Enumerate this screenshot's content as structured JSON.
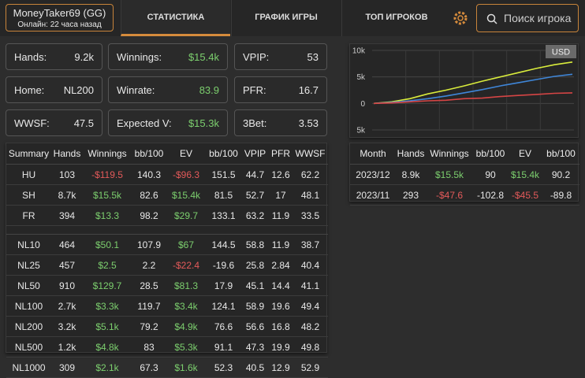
{
  "header": {
    "player": "MoneyTaker69 (GG)",
    "status": "Онлайн: 22 часа назад",
    "tabs": [
      "СТАТИСТИКА",
      "ГРАФИК ИГРЫ",
      "ТОП ИГРОКОВ"
    ],
    "active_tab": 0,
    "search_placeholder": "Поиск игрока"
  },
  "stats": [
    {
      "label": "Hands:",
      "value": "9.2k"
    },
    {
      "label": "Winnings:",
      "value": "$15.4k",
      "color": "#7ccf6e"
    },
    {
      "label": "VPIP:",
      "value": "53"
    },
    {
      "label": "Home:",
      "value": "NL200"
    },
    {
      "label": "Winrate:",
      "value": "83.9",
      "color": "#7ccf6e"
    },
    {
      "label": "PFR:",
      "value": "16.7"
    },
    {
      "label": "WWSF:",
      "value": "47.5"
    },
    {
      "label": "Expected V:",
      "value": "$15.3k",
      "color": "#7ccf6e"
    },
    {
      "label": "3Bet:",
      "value": "3.53"
    }
  ],
  "summary_table": {
    "columns": [
      "Summary",
      "Hands",
      "Winnings",
      "bb/100",
      "EV",
      "bb/100",
      "VPIP",
      "PFR",
      "WWSF"
    ],
    "groups": [
      [
        [
          "HU",
          "103",
          "-$119.5",
          "140.3",
          "-$96.3",
          "151.5",
          "44.7",
          "12.6",
          "62.2"
        ],
        [
          "SH",
          "8.7k",
          "$15.5k",
          "82.6",
          "$15.4k",
          "81.5",
          "52.7",
          "17",
          "48.1"
        ],
        [
          "FR",
          "394",
          "$13.3",
          "98.2",
          "$29.7",
          "133.1",
          "63.2",
          "11.9",
          "33.5"
        ]
      ],
      [
        [
          "NL10",
          "464",
          "$50.1",
          "107.9",
          "$67",
          "144.5",
          "58.8",
          "11.9",
          "38.7"
        ],
        [
          "NL25",
          "457",
          "$2.5",
          "2.2",
          "-$22.4",
          "-19.6",
          "25.8",
          "2.84",
          "40.4"
        ],
        [
          "NL50",
          "910",
          "$129.7",
          "28.5",
          "$81.3",
          "17.9",
          "45.1",
          "14.4",
          "41.1"
        ],
        [
          "NL100",
          "2.7k",
          "$3.3k",
          "119.7",
          "$3.4k",
          "124.1",
          "58.9",
          "19.6",
          "49.4"
        ],
        [
          "NL200",
          "3.2k",
          "$5.1k",
          "79.2",
          "$4.9k",
          "76.6",
          "56.6",
          "16.8",
          "48.2"
        ],
        [
          "NL500",
          "1.2k",
          "$4.8k",
          "83",
          "$5.3k",
          "91.1",
          "47.3",
          "19.9",
          "49.8"
        ],
        [
          "NL1000",
          "309",
          "$2.1k",
          "67.3",
          "$1.6k",
          "52.3",
          "40.5",
          "12.9",
          "52.9"
        ]
      ]
    ]
  },
  "chart": {
    "currency": "USD",
    "ylim": [
      -5000,
      10000
    ],
    "yticks": [
      {
        "value": 10000,
        "label": "10k"
      },
      {
        "value": 5000,
        "label": "5k"
      },
      0,
      {
        "value": -5000,
        "label": "5k"
      }
    ],
    "grid": true,
    "series": [
      {
        "color": "#d9ec3c",
        "values": [
          0,
          300,
          900,
          1800,
          2500,
          3300,
          4200,
          5000,
          5800,
          6600,
          7300,
          7800
        ]
      },
      {
        "color": "#3f86d8",
        "values": [
          0,
          200,
          500,
          900,
          1400,
          2000,
          2600,
          3300,
          3900,
          4500,
          5100,
          5500
        ]
      },
      {
        "color": "#d64545",
        "values": [
          0,
          100,
          300,
          500,
          600,
          900,
          1000,
          1300,
          1500,
          1700,
          1900,
          2000
        ]
      }
    ]
  },
  "month_table": {
    "columns": [
      "Month",
      "Hands",
      "Winnings",
      "bb/100",
      "EV",
      "bb/100"
    ],
    "rows": [
      [
        "2023/12",
        "8.9k",
        "$15.5k",
        "90",
        "$15.4k",
        "90.2"
      ],
      [
        "2023/11",
        "293",
        "-$47.6",
        "-102.8",
        "-$45.5",
        "-89.8"
      ]
    ]
  }
}
